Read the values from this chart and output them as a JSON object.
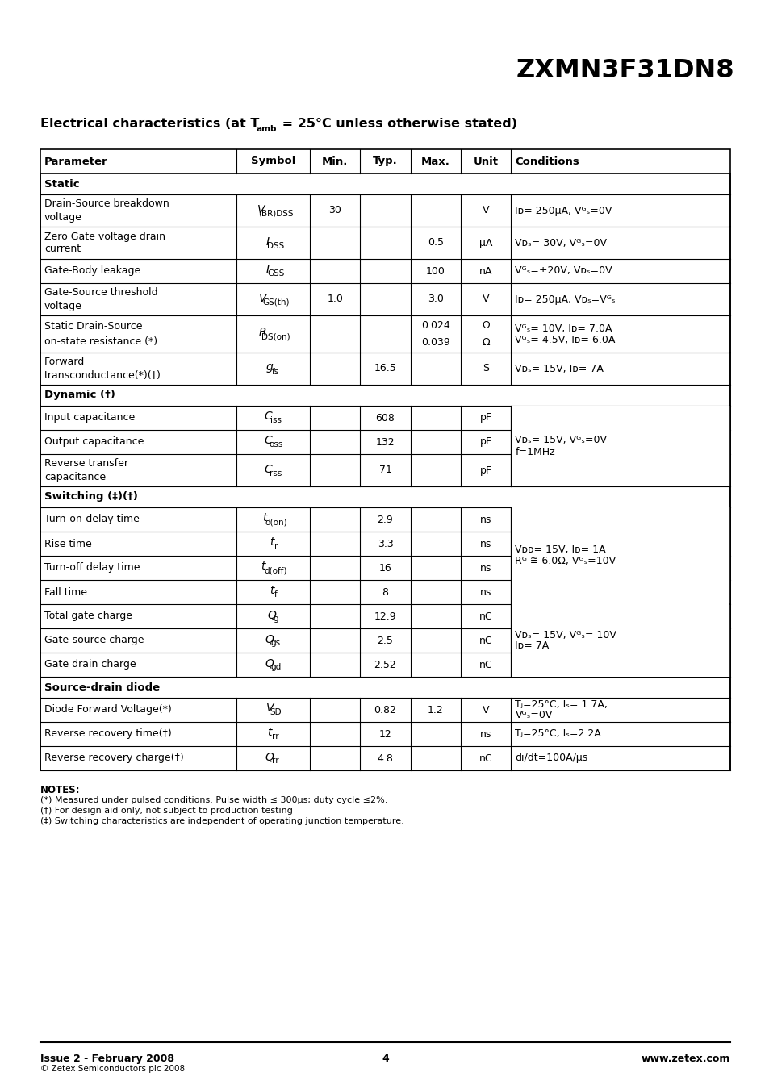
{
  "title": "ZXMN3F31DN8",
  "footer_left": "Issue 2 - February 2008",
  "footer_left2": "© Zetex Semiconductors plc 2008",
  "footer_center": "4",
  "footer_right": "www.zetex.com",
  "notes_title": "NOTES:",
  "notes": [
    "(*) Measured under pulsed conditions. Pulse width ≤ 300μs; duty cycle ≤2%.",
    "(†) For design aid only, not subject to production testing",
    "(‡) Switching characteristics are independent of operating junction temperature."
  ],
  "table_headers": [
    "Parameter",
    "Symbol",
    "Min.",
    "Typ.",
    "Max.",
    "Unit",
    "Conditions"
  ],
  "col_widths_abs": [
    242,
    90,
    62,
    62,
    62,
    62,
    270
  ],
  "rows": [
    {
      "type": "section",
      "col0": "Static"
    },
    {
      "type": "data",
      "col0": "Drain-Source breakdown\nvoltage",
      "col1_main": "V",
      "col1_sub": "(BR)DSS",
      "col2": "30",
      "col3": "",
      "col4": "",
      "col5": "V",
      "col6": "Iᴅ= 250μA, Vᴳₛ=0V",
      "col6b": ""
    },
    {
      "type": "data",
      "col0": "Zero Gate voltage drain\ncurrent",
      "col1_main": "I",
      "col1_sub": "DSS",
      "col2": "",
      "col3": "",
      "col4": "0.5",
      "col5": "μA",
      "col6": "Vᴅₛ= 30V, Vᴳₛ=0V",
      "col6b": ""
    },
    {
      "type": "data",
      "col0": "Gate-Body leakage",
      "col1_main": "I",
      "col1_sub": "GSS",
      "col2": "",
      "col3": "",
      "col4": "100",
      "col5": "nA",
      "col6": "Vᴳₛ=±20V, Vᴅₛ=0V",
      "col6b": ""
    },
    {
      "type": "data",
      "col0": "Gate-Source threshold\nvoltage",
      "col1_main": "V",
      "col1_sub": "GS(th)",
      "col2": "1.0",
      "col3": "",
      "col4": "3.0",
      "col5": "V",
      "col6": "Iᴅ= 250μA, Vᴅₛ=Vᴳₛ",
      "col6b": ""
    },
    {
      "type": "data2",
      "col0": "Static Drain-Source\non-state resistance (*)",
      "col1_main": "R",
      "col1_sub": "DS(on)",
      "col2": "",
      "col3": "",
      "col4a": "0.024",
      "col4b": "0.039",
      "col5a": "Ω",
      "col5b": "Ω",
      "col6": "Vᴳₛ= 10V, Iᴅ= 7.0A",
      "col6b": "Vᴳₛ= 4.5V, Iᴅ= 6.0A"
    },
    {
      "type": "data",
      "col0": "Forward\ntransconductance(*)(†)",
      "col1_main": "g",
      "col1_sub": "fs",
      "col2": "",
      "col3": "16.5",
      "col4": "",
      "col5": "S",
      "col6": "Vᴅₛ= 15V, Iᴅ= 7A",
      "col6b": ""
    },
    {
      "type": "section",
      "col0": "Dynamic (†)"
    },
    {
      "type": "data",
      "col0": "Input capacitance",
      "col1_main": "C",
      "col1_sub": "iss",
      "col2": "",
      "col3": "608",
      "col4": "",
      "col5": "pF",
      "col6": "merged_cap",
      "col6b": ""
    },
    {
      "type": "data",
      "col0": "Output capacitance",
      "col1_main": "C",
      "col1_sub": "oss",
      "col2": "",
      "col3": "132",
      "col4": "",
      "col5": "pF",
      "col6": "merged_cap",
      "col6b": ""
    },
    {
      "type": "data",
      "col0": "Reverse transfer\ncapacitance",
      "col1_main": "C",
      "col1_sub": "rss",
      "col2": "",
      "col3": "71",
      "col4": "",
      "col5": "pF",
      "col6": "merged_cap",
      "col6b": ""
    },
    {
      "type": "section",
      "col0": "Switching (‡)(†)"
    },
    {
      "type": "data",
      "col0": "Turn-on-delay time",
      "col1_main": "t",
      "col1_sub": "d(on)",
      "col2": "",
      "col3": "2.9",
      "col4": "",
      "col5": "ns",
      "col6": "merged_sw",
      "col6b": ""
    },
    {
      "type": "data",
      "col0": "Rise time",
      "col1_main": "t",
      "col1_sub": "r",
      "col2": "",
      "col3": "3.3",
      "col4": "",
      "col5": "ns",
      "col6": "merged_sw",
      "col6b": ""
    },
    {
      "type": "data",
      "col0": "Turn-off delay time",
      "col1_main": "t",
      "col1_sub": "d(off)",
      "col2": "",
      "col3": "16",
      "col4": "",
      "col5": "ns",
      "col6": "merged_sw",
      "col6b": ""
    },
    {
      "type": "data",
      "col0": "Fall time",
      "col1_main": "t",
      "col1_sub": "f",
      "col2": "",
      "col3": "8",
      "col4": "",
      "col5": "ns",
      "col6": "merged_sw",
      "col6b": ""
    },
    {
      "type": "data",
      "col0": "Total gate charge",
      "col1_main": "Q",
      "col1_sub": "g",
      "col2": "",
      "col3": "12.9",
      "col4": "",
      "col5": "nC",
      "col6": "merged_qg",
      "col6b": ""
    },
    {
      "type": "data",
      "col0": "Gate-source charge",
      "col1_main": "Q",
      "col1_sub": "gs",
      "col2": "",
      "col3": "2.5",
      "col4": "",
      "col5": "nC",
      "col6": "merged_qg",
      "col6b": ""
    },
    {
      "type": "data",
      "col0": "Gate drain charge",
      "col1_main": "Q",
      "col1_sub": "gd",
      "col2": "",
      "col3": "2.52",
      "col4": "",
      "col5": "nC",
      "col6": "merged_qg",
      "col6b": ""
    },
    {
      "type": "section",
      "col0": "Source-drain diode"
    },
    {
      "type": "data",
      "col0": "Diode Forward Voltage(*)",
      "col1_main": "V",
      "col1_sub": "SD",
      "col2": "",
      "col3": "0.82",
      "col4": "1.2",
      "col5": "V",
      "col6": "Tⱼ=25°C, Iₛ= 1.7A,",
      "col6b": "Vᴳₛ=0V"
    },
    {
      "type": "data",
      "col0": "Reverse recovery time(†)",
      "col1_main": "t",
      "col1_sub": "rr",
      "col2": "",
      "col3": "12",
      "col4": "",
      "col5": "ns",
      "col6": "Tⱼ=25°C, Iₛ=2.2A",
      "col6b": ""
    },
    {
      "type": "data",
      "col0": "Reverse recovery charge(†)",
      "col1_main": "Q",
      "col1_sub": "rr",
      "col2": "",
      "col3": "4.8",
      "col4": "",
      "col5": "nC",
      "col6": "di/dt=100A/μs",
      "col6b": ""
    }
  ],
  "merged_cap_line1": "Vᴅₛ= 15V, Vᴳₛ=0V",
  "merged_cap_line2": "f=1MHz",
  "merged_sw_line1": "Vᴅᴅ= 15V, Iᴅ= 1A",
  "merged_sw_line2": "Rᴳ ≅ 6.0Ω, Vᴳₛ=10V",
  "merged_qg_line1": "Vᴅₛ= 15V, Vᴳₛ= 10V",
  "merged_qg_line2": "Iᴅ= 7A",
  "bg_color": "#ffffff",
  "text_color": "#000000"
}
